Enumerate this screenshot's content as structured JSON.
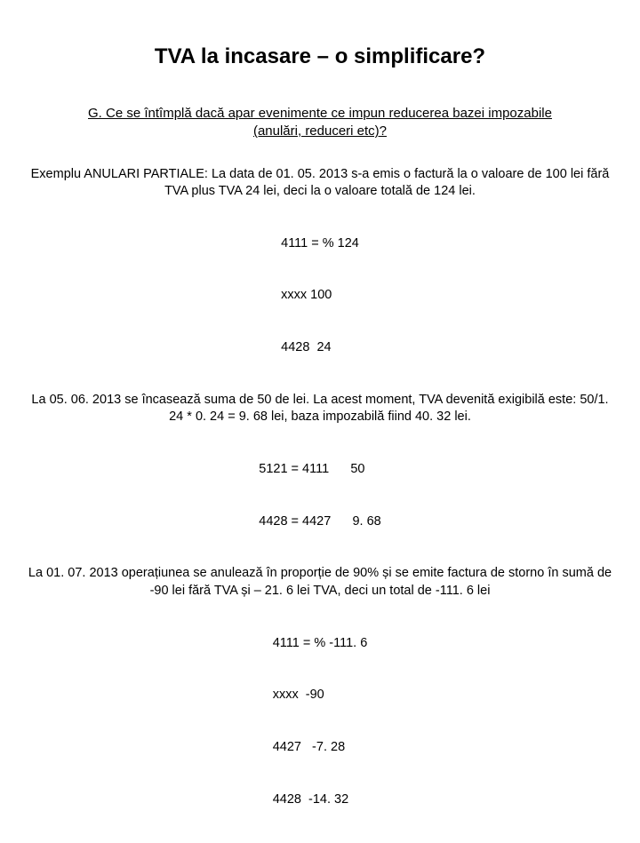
{
  "title": "TVA la incasare – o simplificare?",
  "subtitle": "G. Ce se întîmplă dacă apar evenimente ce impun reducerea bazei impozabile (anulări, reduceri etc)?",
  "p1": "Exemplu ANULARI PARTIALE: La data de 01. 05. 2013 s-a emis o factură la o valoare de 100 lei fără TVA plus TVA 24 lei, deci la o valoare totală de 124 lei.",
  "l1a": "4111 = % 124",
  "l1b": "xxxx 100",
  "l1c": "4428  24",
  "p2": "La 05. 06. 2013 se încasează suma de 50 de lei. La acest moment, TVA devenită exigibilă este: 50/1. 24 * 0. 24 = 9. 68 lei, baza impozabilă fiind 40. 32 lei.",
  "l2a": "5121 = 4111      50",
  "l2b": "4428 = 4427      9. 68",
  "p3": "La 01. 07. 2013 operațiunea se anulează în proporție de 90% și se emite factura de storno în sumă de -90 lei fără TVA și – 21. 6 lei TVA, deci un total de -111. 6 lei",
  "l3a": "4111 = % -111. 6",
  "l3b": "xxxx  -90",
  "l3c": "4427   -7. 28",
  "l3d": "4428  -14. 32",
  "colors": {
    "background": "#ffffff",
    "text": "#000000"
  },
  "fonts": {
    "family": "Comic Sans MS",
    "title_size_pt": 18,
    "subtitle_size_pt": 11,
    "body_size_pt": 11
  }
}
